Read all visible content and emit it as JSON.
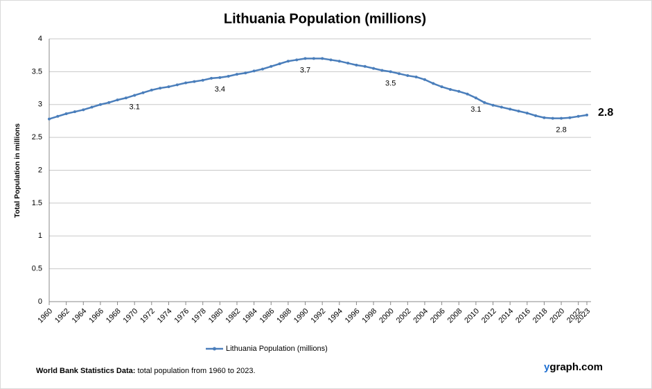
{
  "chart_data": {
    "type": "line",
    "title": "Lithuania Population (millions)",
    "y_label": "Total Population  in millions",
    "x": [
      1960,
      1961,
      1962,
      1963,
      1964,
      1965,
      1966,
      1967,
      1968,
      1969,
      1970,
      1971,
      1972,
      1973,
      1974,
      1975,
      1976,
      1977,
      1978,
      1979,
      1980,
      1981,
      1982,
      1983,
      1984,
      1985,
      1986,
      1987,
      1988,
      1989,
      1990,
      1991,
      1992,
      1993,
      1994,
      1995,
      1996,
      1997,
      1998,
      1999,
      2000,
      2001,
      2002,
      2003,
      2004,
      2005,
      2006,
      2007,
      2008,
      2009,
      2010,
      2011,
      2012,
      2013,
      2014,
      2015,
      2016,
      2017,
      2018,
      2019,
      2020,
      2021,
      2022,
      2023
    ],
    "series": [
      {
        "name": "Lithuania Population (millions)",
        "color": "#4a7ebb",
        "values": [
          2.78,
          2.82,
          2.86,
          2.89,
          2.92,
          2.96,
          3.0,
          3.03,
          3.07,
          3.1,
          3.14,
          3.18,
          3.22,
          3.25,
          3.27,
          3.3,
          3.33,
          3.35,
          3.37,
          3.4,
          3.41,
          3.43,
          3.46,
          3.48,
          3.51,
          3.54,
          3.58,
          3.62,
          3.66,
          3.68,
          3.7,
          3.7,
          3.7,
          3.68,
          3.66,
          3.63,
          3.6,
          3.58,
          3.55,
          3.52,
          3.5,
          3.47,
          3.44,
          3.42,
          3.38,
          3.32,
          3.27,
          3.23,
          3.2,
          3.16,
          3.1,
          3.03,
          2.99,
          2.96,
          2.93,
          2.9,
          2.87,
          2.83,
          2.8,
          2.79,
          2.79,
          2.8,
          2.82,
          2.84
        ],
        "value_labels": [
          null,
          null,
          null,
          null,
          null,
          null,
          null,
          null,
          null,
          null,
          "3.1",
          null,
          null,
          null,
          null,
          null,
          null,
          null,
          null,
          null,
          "3.4",
          null,
          null,
          null,
          null,
          null,
          null,
          null,
          null,
          null,
          "3.7",
          null,
          null,
          null,
          null,
          null,
          null,
          null,
          null,
          null,
          "3.5",
          null,
          null,
          null,
          null,
          null,
          null,
          null,
          null,
          null,
          "3.1",
          null,
          null,
          null,
          null,
          null,
          null,
          null,
          null,
          null,
          "2.8",
          null,
          null,
          "2.8"
        ]
      }
    ],
    "xlim": [
      1960,
      2023
    ],
    "xticks": [
      1960,
      1962,
      1964,
      1966,
      1968,
      1970,
      1972,
      1974,
      1976,
      1978,
      1980,
      1982,
      1984,
      1986,
      1988,
      1990,
      1992,
      1994,
      1996,
      1998,
      2000,
      2002,
      2004,
      2006,
      2008,
      2010,
      2012,
      2014,
      2016,
      2018,
      2020,
      2022,
      2023
    ],
    "ylim": [
      0,
      4
    ],
    "yticks": [
      0,
      0.5,
      1,
      1.5,
      2,
      2.5,
      3,
      3.5,
      4
    ],
    "grid": true,
    "legend": "bottom",
    "footer_bold": "World Bank Statistics Data:",
    "footer_text": "total population from 1960 to 2023.",
    "brand_y": "y",
    "brand_rest": "graph.com"
  }
}
